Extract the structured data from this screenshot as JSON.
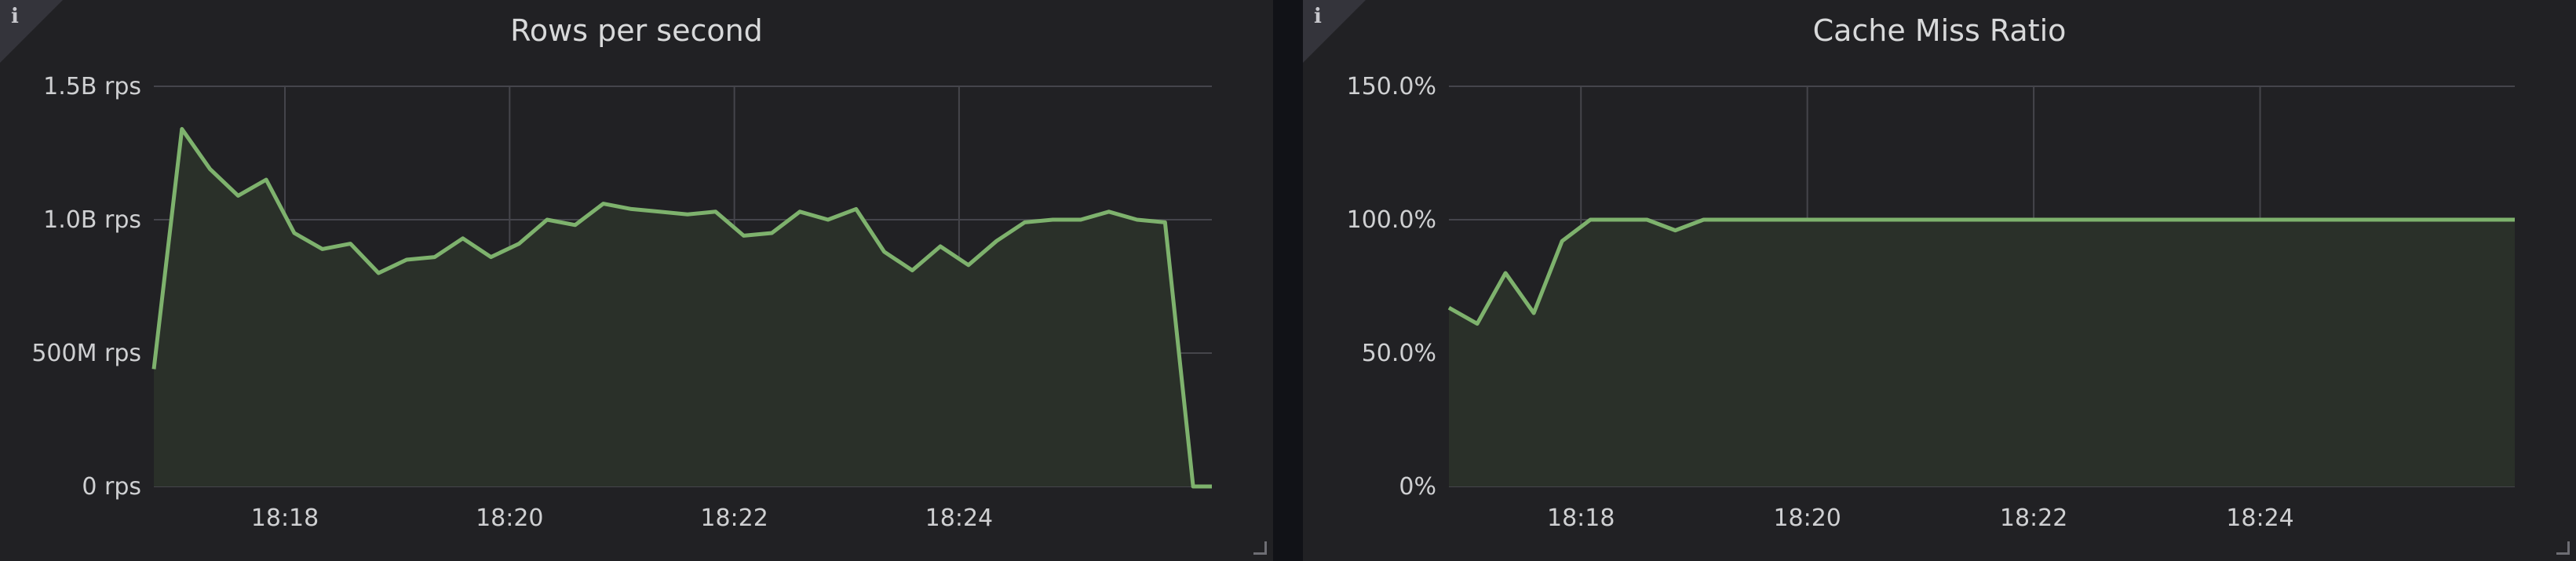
{
  "colors": {
    "background": "#111217",
    "panel": "#212124",
    "grid": "#45454b",
    "series": "#7eb26d",
    "fill": "#2a3029",
    "text": "#d8d9da"
  },
  "panels": [
    {
      "title": "Rows per second",
      "info_icon": "info-icon",
      "chart_data": {
        "type": "area",
        "title": "Rows per second",
        "unit": "rps",
        "x_axis": {
          "min": "18:16:50",
          "max": "18:26:15",
          "ticks": [
            "18:18",
            "18:20",
            "18:22",
            "18:24"
          ]
        },
        "y_axis": {
          "min": 0,
          "max": 1500000000,
          "ticks": [
            {
              "value": 0,
              "label": "0 rps"
            },
            {
              "value": 500000000,
              "label": "500M rps"
            },
            {
              "value": 1000000000,
              "label": "1.0B rps"
            },
            {
              "value": 1500000000,
              "label": "1.5B rps"
            }
          ]
        },
        "grid": true,
        "series": [
          {
            "x": [
              "18:16:50",
              "18:17:05",
              "18:17:20",
              "18:17:35",
              "18:17:50",
              "18:18:05",
              "18:18:20",
              "18:18:35",
              "18:18:50",
              "18:19:05",
              "18:19:20",
              "18:19:35",
              "18:19:50",
              "18:20:05",
              "18:20:20",
              "18:20:35",
              "18:20:50",
              "18:21:05",
              "18:21:20",
              "18:21:35",
              "18:21:50",
              "18:22:05",
              "18:22:20",
              "18:22:35",
              "18:22:50",
              "18:23:05",
              "18:23:20",
              "18:23:35",
              "18:23:50",
              "18:24:05",
              "18:24:20",
              "18:24:35",
              "18:24:50",
              "18:25:05",
              "18:25:20",
              "18:25:35",
              "18:25:50",
              "18:26:05",
              "18:26:15"
            ],
            "values": [
              440000000,
              1340000000,
              1190000000,
              1090000000,
              1150000000,
              950000000,
              890000000,
              910000000,
              800000000,
              850000000,
              860000000,
              930000000,
              860000000,
              910000000,
              1000000000,
              980000000,
              1060000000,
              1040000000,
              1030000000,
              1020000000,
              1030000000,
              940000000,
              950000000,
              1030000000,
              1000000000,
              1040000000,
              880000000,
              810000000,
              900000000,
              830000000,
              920000000,
              990000000,
              1000000000,
              1000000000,
              1030000000,
              1000000000,
              990000000,
              0,
              0
            ]
          }
        ]
      }
    },
    {
      "title": "Cache Miss Ratio",
      "info_icon": "info-icon",
      "chart_data": {
        "type": "area",
        "title": "Cache Miss Ratio",
        "unit": "%",
        "x_axis": {
          "min": "18:16:50",
          "max": "18:26:15",
          "ticks": [
            "18:18",
            "18:20",
            "18:22",
            "18:24"
          ]
        },
        "y_axis": {
          "min": 0,
          "max": 150,
          "ticks": [
            {
              "value": 0,
              "label": "0%"
            },
            {
              "value": 50,
              "label": "50.0%"
            },
            {
              "value": 100,
              "label": "100.0%"
            },
            {
              "value": 150,
              "label": "150.0%"
            }
          ]
        },
        "grid": true,
        "series": [
          {
            "x": [
              "18:16:50",
              "18:17:05",
              "18:17:20",
              "18:17:35",
              "18:17:50",
              "18:18:05",
              "18:18:20",
              "18:18:35",
              "18:18:50",
              "18:19:05",
              "18:19:20",
              "18:26:15"
            ],
            "values": [
              67,
              61,
              80,
              65,
              92,
              100,
              100,
              100,
              96,
              100,
              100,
              100
            ]
          }
        ]
      }
    }
  ]
}
